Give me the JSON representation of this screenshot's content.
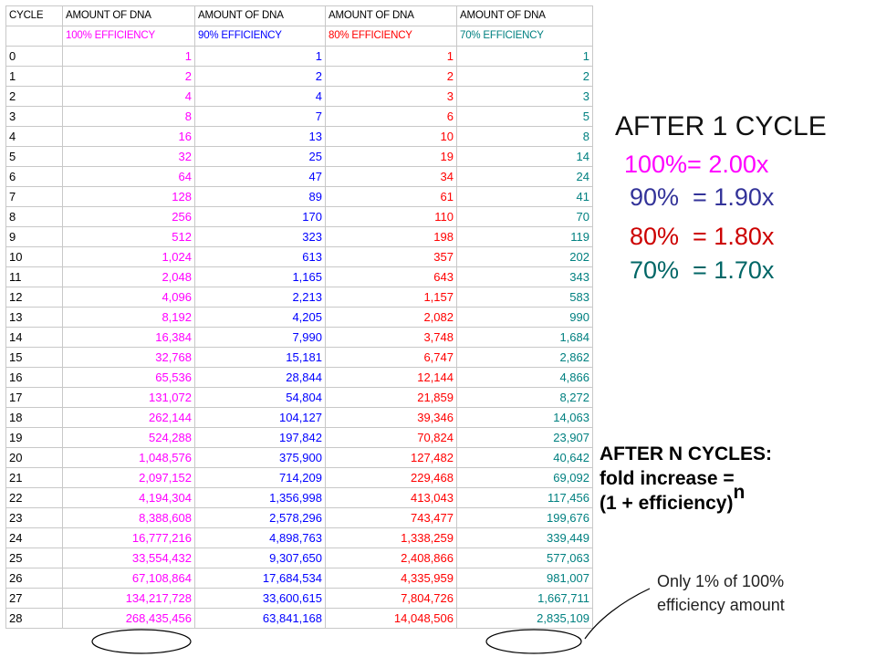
{
  "table": {
    "headers": [
      "CYCLE",
      "AMOUNT OF DNA",
      "AMOUNT OF DNA",
      "AMOUNT OF DNA",
      "AMOUNT OF DNA"
    ],
    "efficiency_labels": [
      "100% EFFICIENCY",
      "90% EFFICIENCY",
      "80% EFFICIENCY",
      "70% EFFICIENCY"
    ],
    "rows": [
      [
        "0",
        "1",
        "1",
        "1",
        "1"
      ],
      [
        "1",
        "2",
        "2",
        "2",
        "2"
      ],
      [
        "2",
        "4",
        "4",
        "3",
        "3"
      ],
      [
        "3",
        "8",
        "7",
        "6",
        "5"
      ],
      [
        "4",
        "16",
        "13",
        "10",
        "8"
      ],
      [
        "5",
        "32",
        "25",
        "19",
        "14"
      ],
      [
        "6",
        "64",
        "47",
        "34",
        "24"
      ],
      [
        "7",
        "128",
        "89",
        "61",
        "41"
      ],
      [
        "8",
        "256",
        "170",
        "110",
        "70"
      ],
      [
        "9",
        "512",
        "323",
        "198",
        "119"
      ],
      [
        "10",
        "1,024",
        "613",
        "357",
        "202"
      ],
      [
        "11",
        "2,048",
        "1,165",
        "643",
        "343"
      ],
      [
        "12",
        "4,096",
        "2,213",
        "1,157",
        "583"
      ],
      [
        "13",
        "8,192",
        "4,205",
        "2,082",
        "990"
      ],
      [
        "14",
        "16,384",
        "7,990",
        "3,748",
        "1,684"
      ],
      [
        "15",
        "32,768",
        "15,181",
        "6,747",
        "2,862"
      ],
      [
        "16",
        "65,536",
        "28,844",
        "12,144",
        "4,866"
      ],
      [
        "17",
        "131,072",
        "54,804",
        "21,859",
        "8,272"
      ],
      [
        "18",
        "262,144",
        "104,127",
        "39,346",
        "14,063"
      ],
      [
        "19",
        "524,288",
        "197,842",
        "70,824",
        "23,907"
      ],
      [
        "20",
        "1,048,576",
        "375,900",
        "127,482",
        "40,642"
      ],
      [
        "21",
        "2,097,152",
        "714,209",
        "229,468",
        "69,092"
      ],
      [
        "22",
        "4,194,304",
        "1,356,998",
        "413,043",
        "117,456"
      ],
      [
        "23",
        "8,388,608",
        "2,578,296",
        "743,477",
        "199,676"
      ],
      [
        "24",
        "16,777,216",
        "4,898,763",
        "1,338,259",
        "339,449"
      ],
      [
        "25",
        "33,554,432",
        "9,307,650",
        "2,408,866",
        "577,063"
      ],
      [
        "26",
        "67,108,864",
        "17,684,534",
        "4,335,959",
        "981,007"
      ],
      [
        "27",
        "134,217,728",
        "33,600,615",
        "7,804,726",
        "1,667,711"
      ],
      [
        "28",
        "268,435,456",
        "63,841,168",
        "14,048,506",
        "2,835,109"
      ]
    ]
  },
  "after_one": {
    "title": "AFTER 1 CYCLE",
    "lines": [
      "100%= 2.00x",
      "90%  = 1.90x",
      "80%  = 1.80x",
      "70%  = 1.70x"
    ]
  },
  "after_n": {
    "line1": "AFTER N CYCLES:",
    "line2": "fold increase =",
    "line3": "(1 + efficiency)",
    "exponent": "n"
  },
  "note": {
    "line1": "Only 1% of 100%",
    "line2": "efficiency amount"
  },
  "colors": {
    "eff100": "#ff00ff",
    "eff90": "#0000ff",
    "eff80": "#ff0000",
    "eff70": "#008080"
  }
}
